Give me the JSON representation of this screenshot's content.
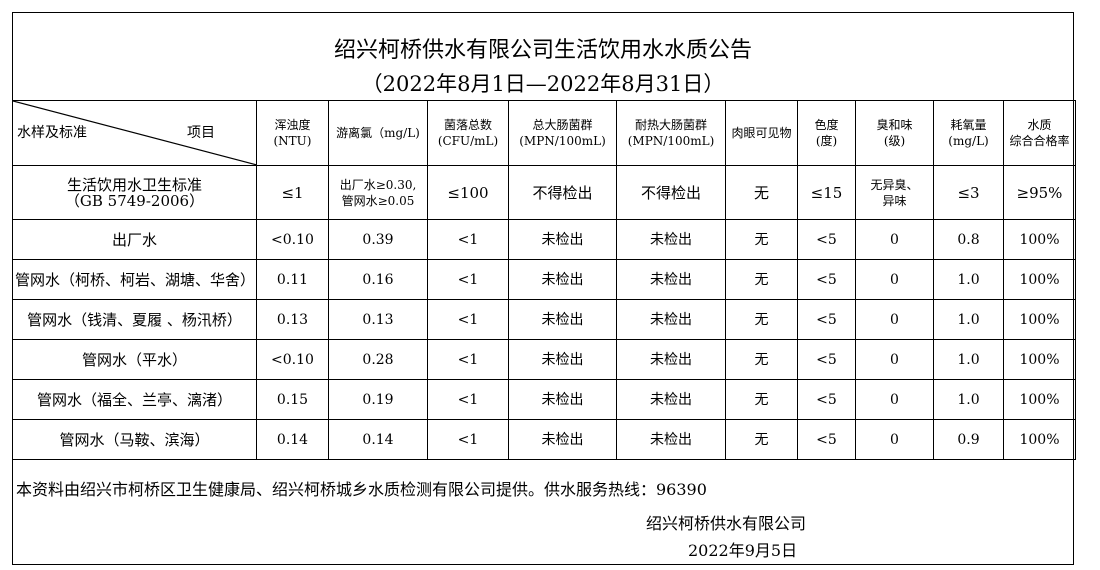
{
  "title": "绍兴柯桥供水有限公司生活饮用水水质公告",
  "subtitle": "（2022年8月1日—2022年8月31日）",
  "corner": {
    "left": "水样及标准",
    "right": "项目"
  },
  "columns": [
    [
      "浑浊度",
      "(NTU)"
    ],
    [
      "游离氯（mg/L)",
      ""
    ],
    [
      "菌落总数",
      "(CFU/mL)"
    ],
    [
      "总大肠菌群",
      "(MPN/100mL)"
    ],
    [
      "耐热大肠菌群",
      "(MPN/100mL)"
    ],
    [
      "肉眼可见物",
      ""
    ],
    [
      "色度",
      "(度)"
    ],
    [
      "臭和味",
      "(级)"
    ],
    [
      "耗氧量",
      "(mg/L)"
    ],
    [
      "水质",
      "综合合格率"
    ]
  ],
  "standard": {
    "name": "生活饮用水卫生标准",
    "code": "（GB 5749-2006）",
    "values": [
      "≤1",
      "出厂水≥0.30,\n管网水≥0.05",
      "≤100",
      "不得检出",
      "不得检出",
      "无",
      "≤15",
      "无异臭、\n异味",
      "≤3",
      "≥95%"
    ]
  },
  "rows": [
    {
      "name": "出厂水",
      "values": [
        "<0.10",
        "0.39",
        "<1",
        "未检出",
        "未检出",
        "无",
        "<5",
        "0",
        "0.8",
        "100%"
      ]
    },
    {
      "name": "管网水（柯桥、柯岩、湖塘、华舍）",
      "values": [
        "0.11",
        "0.16",
        "<1",
        "未检出",
        "未检出",
        "无",
        "<5",
        "0",
        "1.0",
        "100%"
      ]
    },
    {
      "name": "管网水（钱清、夏履 、杨汛桥）",
      "values": [
        "0.13",
        "0.13",
        "<1",
        "未检出",
        "未检出",
        "无",
        "<5",
        "0",
        "1.0",
        "100%"
      ]
    },
    {
      "name": "管网水（平水）",
      "values": [
        "<0.10",
        "0.28",
        "<1",
        "未检出",
        "未检出",
        "无",
        "<5",
        "0",
        "1.0",
        "100%"
      ]
    },
    {
      "name": "管网水（福全、兰亭、漓渚）",
      "values": [
        "0.15",
        "0.19",
        "<1",
        "未检出",
        "未检出",
        "无",
        "<5",
        "0",
        "1.0",
        "100%"
      ]
    },
    {
      "name": "管网水（马鞍、滨海）",
      "values": [
        "0.14",
        "0.14",
        "<1",
        "未检出",
        "未检出",
        "无",
        "<5",
        "0",
        "0.9",
        "100%"
      ]
    }
  ],
  "note": "本资料由绍兴市柯桥区卫生健康局、绍兴柯桥城乡水质检测有限公司提供。供水服务热线：96390",
  "company": "绍兴柯桥供水有限公司",
  "date": "2022年9月5日"
}
